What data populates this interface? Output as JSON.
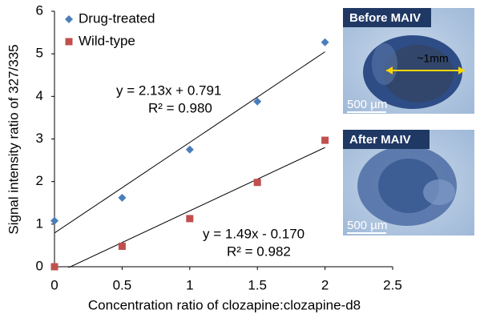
{
  "chart_data": {
    "type": "scatter",
    "x_label": "Concentration ratio of clozapine:clozapine-d8",
    "y_label": "Signal intensity  ratio of 327/335",
    "series": [
      {
        "name": "Drug-treated",
        "color": "#4a7ebb",
        "marker": "diamond",
        "x": [
          0,
          0.5,
          1,
          1.5,
          2
        ],
        "values": [
          1.08,
          1.62,
          2.75,
          3.88,
          5.27
        ]
      },
      {
        "name": "Wild-type",
        "color": "#c0504d",
        "marker": "square",
        "x": [
          0,
          0.5,
          1,
          1.5,
          2
        ],
        "values": [
          0,
          0.48,
          1.13,
          1.98,
          2.97
        ]
      }
    ],
    "trendline": true,
    "annotations": [
      "y = 2.13x + 0.791",
      "R² = 0.980",
      "y = 1.49x - 0.170",
      "R² = 0.982"
    ],
    "xlim": [
      0,
      2.5
    ],
    "xticks": [
      0,
      0.5,
      1,
      1.5,
      2,
      2.5
    ],
    "ylim": [
      0,
      6
    ],
    "yticks": [
      0,
      1,
      2,
      3,
      4,
      5,
      6
    ],
    "grid": false,
    "legend": "top-left"
  },
  "panels": [
    {
      "title": "Before MAIV",
      "labels": [
        "~1mm",
        "500 µm"
      ]
    },
    {
      "title": "After  MAIV",
      "labels": [
        "500 µm"
      ]
    }
  ]
}
